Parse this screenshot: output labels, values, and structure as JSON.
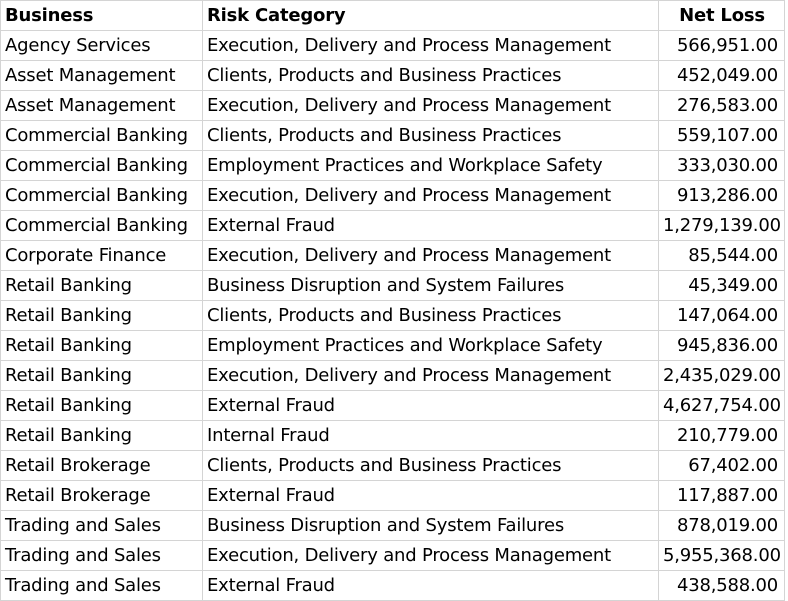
{
  "sheet": {
    "headers": {
      "business": "Business",
      "risk_category": "Risk Category",
      "net_loss": "Net Loss"
    },
    "rows": [
      {
        "business": "Agency Services",
        "risk_category": "Execution, Delivery and Process Management",
        "net_loss": "566,951.00"
      },
      {
        "business": "Asset Management",
        "risk_category": "Clients, Products and Business Practices",
        "net_loss": "452,049.00"
      },
      {
        "business": "Asset Management",
        "risk_category": "Execution, Delivery and Process Management",
        "net_loss": "276,583.00"
      },
      {
        "business": "Commercial Banking",
        "risk_category": "Clients, Products and Business Practices",
        "net_loss": "559,107.00"
      },
      {
        "business": "Commercial Banking",
        "risk_category": "Employment Practices and Workplace Safety",
        "net_loss": "333,030.00"
      },
      {
        "business": "Commercial Banking",
        "risk_category": "Execution, Delivery and Process Management",
        "net_loss": "913,286.00"
      },
      {
        "business": "Commercial Banking",
        "risk_category": "External Fraud",
        "net_loss": "1,279,139.00"
      },
      {
        "business": "Corporate Finance",
        "risk_category": "Execution, Delivery and Process Management",
        "net_loss": "85,544.00"
      },
      {
        "business": "Retail Banking",
        "risk_category": "Business Disruption and System Failures",
        "net_loss": "45,349.00"
      },
      {
        "business": "Retail Banking",
        "risk_category": "Clients, Products and Business Practices",
        "net_loss": "147,064.00"
      },
      {
        "business": "Retail Banking",
        "risk_category": "Employment Practices and Workplace Safety",
        "net_loss": "945,836.00"
      },
      {
        "business": "Retail Banking",
        "risk_category": "Execution, Delivery and Process Management",
        "net_loss": "2,435,029.00"
      },
      {
        "business": "Retail Banking",
        "risk_category": "External Fraud",
        "net_loss": "4,627,754.00"
      },
      {
        "business": "Retail Banking",
        "risk_category": "Internal Fraud",
        "net_loss": "210,779.00"
      },
      {
        "business": "Retail Brokerage",
        "risk_category": "Clients, Products and Business Practices",
        "net_loss": "67,402.00"
      },
      {
        "business": "Retail Brokerage",
        "risk_category": "External Fraud",
        "net_loss": "117,887.00"
      },
      {
        "business": "Trading and Sales",
        "risk_category": "Business Disruption and System Failures",
        "net_loss": "878,019.00"
      },
      {
        "business": "Trading and Sales",
        "risk_category": "Execution, Delivery and Process Management",
        "net_loss": "5,955,368.00"
      },
      {
        "business": "Trading and Sales",
        "risk_category": "External Fraud",
        "net_loss": "438,588.00"
      }
    ]
  }
}
